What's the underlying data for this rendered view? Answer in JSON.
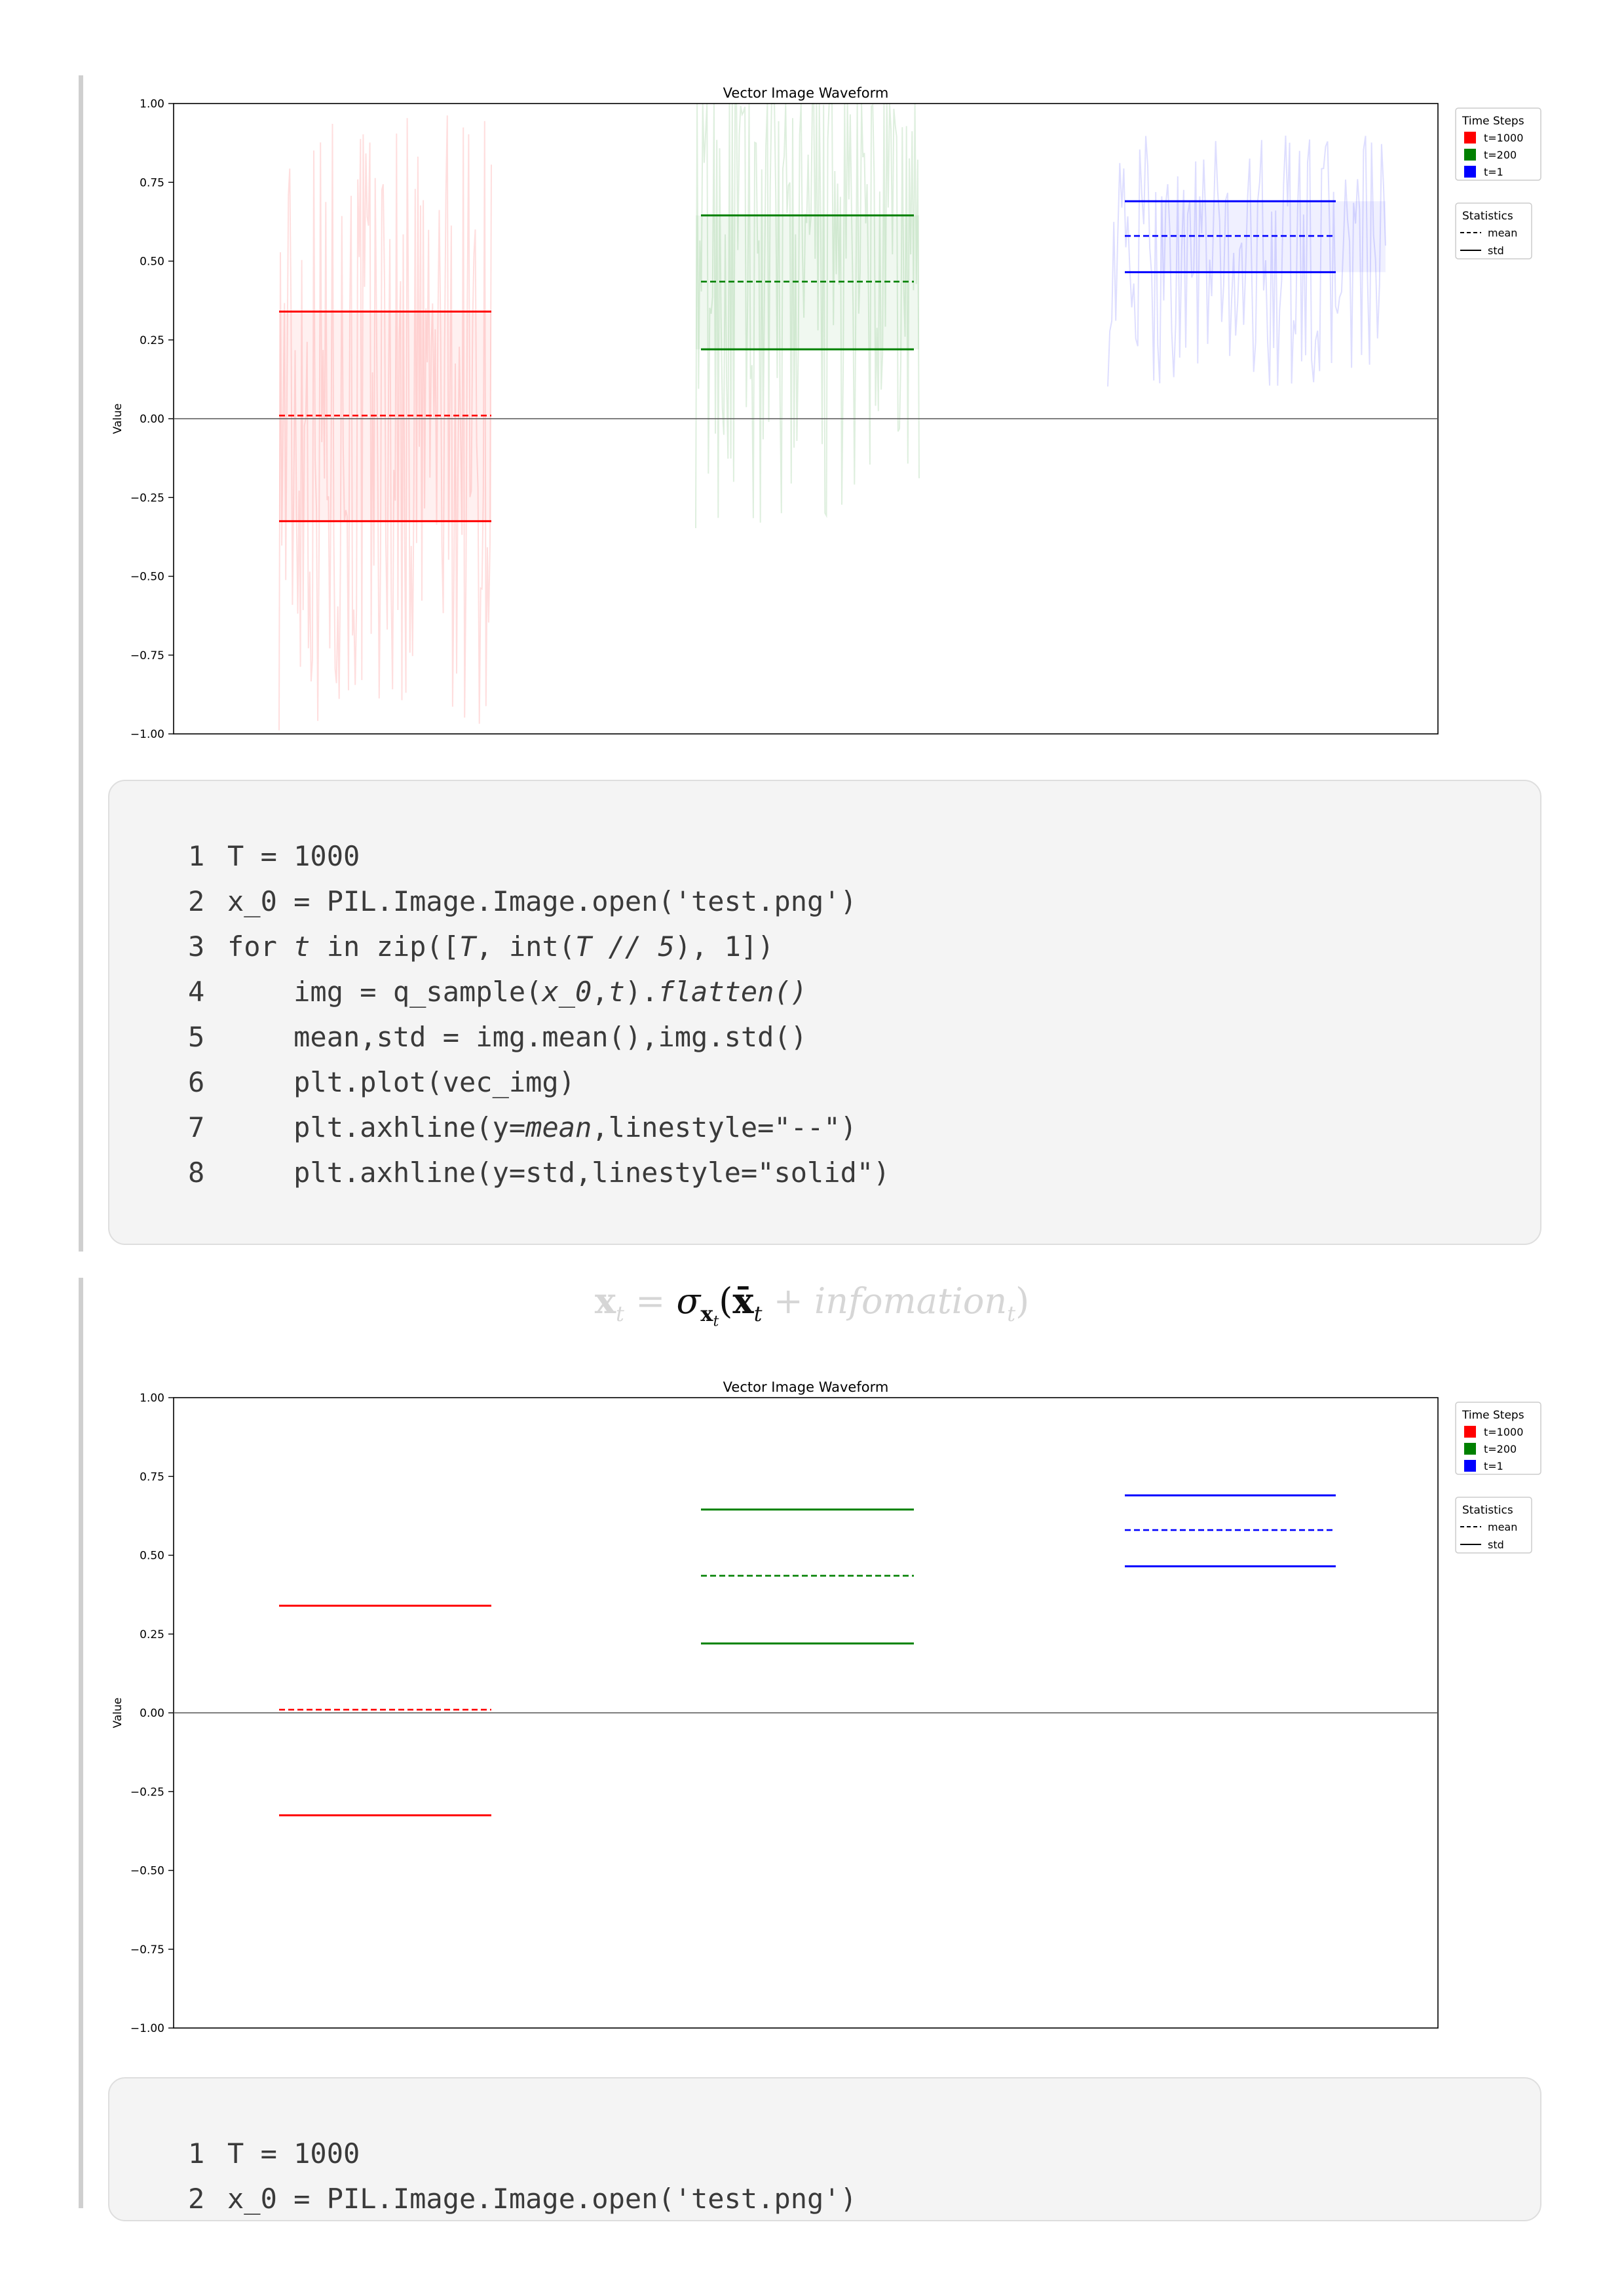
{
  "chart_data": [
    {
      "type": "line",
      "title": "Vector Image Waveform",
      "ylabel": "Value",
      "xlabel": "",
      "ylim": [
        -1.0,
        1.0
      ],
      "yticks": [
        "1.00",
        "0.75",
        "0.50",
        "0.25",
        "0.00",
        "−0.25",
        "−0.50",
        "−0.75",
        "−1.00"
      ],
      "zero_line": true,
      "grid": false,
      "waveforms_visible": true,
      "series": [
        {
          "name": "t=1000",
          "color": "#ff0000",
          "mean": 0.01,
          "std_upper": 0.34,
          "std_lower": -0.325,
          "wave_center": 0.01,
          "wave_amplitude": 1.0
        },
        {
          "name": "t=200",
          "color": "#008000",
          "mean": 0.435,
          "std_upper": 0.645,
          "std_lower": 0.22,
          "wave_center": 0.45,
          "wave_amplitude": 0.8
        },
        {
          "name": "t=1",
          "color": "#0000ff",
          "mean": 0.58,
          "std_upper": 0.69,
          "std_lower": 0.465,
          "wave_center": 0.5,
          "wave_amplitude": 0.4
        }
      ],
      "legend_time_steps": {
        "title": "Time Steps",
        "entries": [
          "t=1000",
          "t=200",
          "t=1"
        ]
      },
      "legend_statistics": {
        "title": "Statistics",
        "entries": [
          "mean",
          "std"
        ]
      }
    },
    {
      "type": "line",
      "title": "Vector Image Waveform",
      "ylabel": "Value",
      "xlabel": "",
      "ylim": [
        -1.0,
        1.0
      ],
      "yticks": [
        "1.00",
        "0.75",
        "0.50",
        "0.25",
        "0.00",
        "−0.25",
        "−0.50",
        "−0.75",
        "−1.00"
      ],
      "zero_line": true,
      "grid": false,
      "waveforms_visible": false,
      "series": [
        {
          "name": "t=1000",
          "color": "#ff0000",
          "mean": 0.01,
          "std_upper": 0.34,
          "std_lower": -0.325
        },
        {
          "name": "t=200",
          "color": "#008000",
          "mean": 0.435,
          "std_upper": 0.645,
          "std_lower": 0.22
        },
        {
          "name": "t=1",
          "color": "#0000ff",
          "mean": 0.58,
          "std_upper": 0.69,
          "std_lower": 0.465
        }
      ],
      "legend_time_steps": {
        "title": "Time Steps",
        "entries": [
          "t=1000",
          "t=200",
          "t=1"
        ]
      },
      "legend_statistics": {
        "title": "Statistics",
        "entries": [
          "mean",
          "std"
        ]
      }
    }
  ],
  "code_block_1": {
    "lines": [
      {
        "num": "1",
        "segments": [
          {
            "t": "T = 1000"
          }
        ]
      },
      {
        "num": "2",
        "segments": [
          {
            "t": "x_0 = PIL.Image.Image.open('test.png')"
          }
        ]
      },
      {
        "num": "3",
        "segments": [
          {
            "t": "for "
          },
          {
            "t": "t",
            "i": true
          },
          {
            "t": " in zip(["
          },
          {
            "t": "T",
            "i": true
          },
          {
            "t": ", int("
          },
          {
            "t": "T // 5",
            "i": true
          },
          {
            "t": "), 1])"
          }
        ]
      },
      {
        "num": "4",
        "segments": [
          {
            "t": "    img = q_sample("
          },
          {
            "t": "x_0",
            "i": true
          },
          {
            "t": ","
          },
          {
            "t": "t",
            "i": true
          },
          {
            "t": ")."
          },
          {
            "t": "flatten()",
            "i": true
          }
        ]
      },
      {
        "num": "5",
        "segments": [
          {
            "t": "    mean,std = img.mean(),img.std()"
          }
        ]
      },
      {
        "num": "6",
        "segments": [
          {
            "t": "    plt.plot(vec_img)"
          }
        ]
      },
      {
        "num": "7",
        "segments": [
          {
            "t": "    plt.axhline(y="
          },
          {
            "t": "mean",
            "i": true
          },
          {
            "t": ",linestyle=\"--\")"
          }
        ]
      },
      {
        "num": "8",
        "segments": [
          {
            "t": "    plt.axhline(y=std,linestyle=\"solid\")"
          }
        ]
      }
    ]
  },
  "formula": {
    "lhs": "x",
    "lhs_sub": "t",
    "eq": " = ",
    "sigma": "σ",
    "sigma_sub": "x",
    "sigma_subsub": "t",
    "open": "(",
    "xbar": "x̄",
    "xbar_sub": "t",
    "plus": " + ",
    "info": "infomation",
    "info_sub": "t",
    "close": ")"
  },
  "code_block_2": {
    "lines": [
      {
        "num": "1",
        "segments": [
          {
            "t": "T = 1000"
          }
        ]
      },
      {
        "num": "2",
        "segments": [
          {
            "t": "x_0 = PIL.Image.Image.open('test.png')"
          }
        ]
      }
    ]
  }
}
